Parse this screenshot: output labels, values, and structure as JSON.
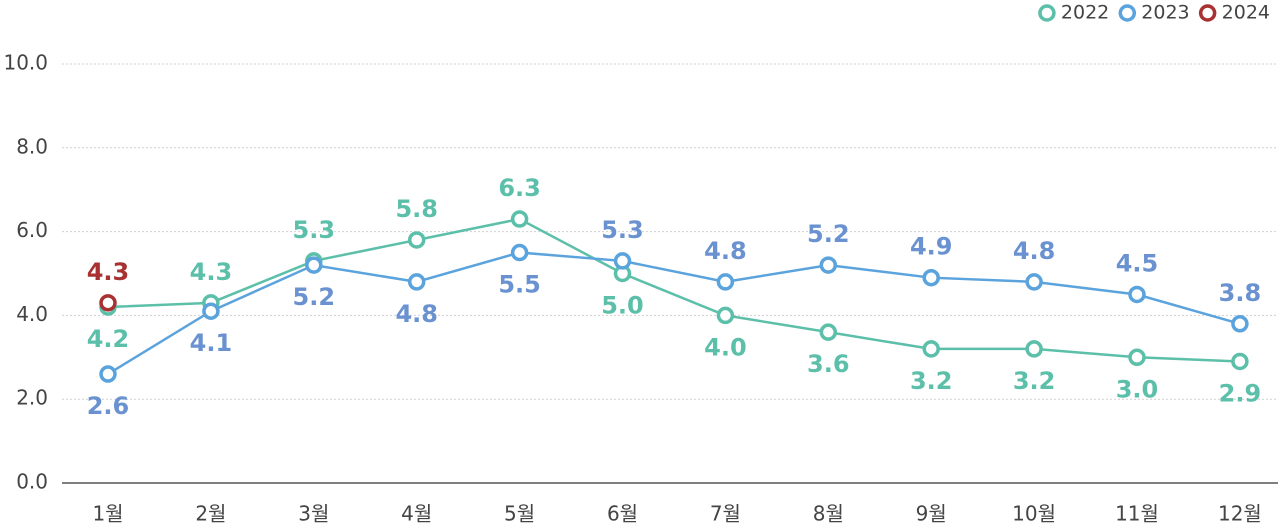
{
  "chart_data": {
    "type": "line",
    "categories": [
      "1월",
      "2월",
      "3월",
      "4월",
      "5월",
      "6월",
      "7월",
      "8월",
      "9월",
      "10월",
      "11월",
      "12월"
    ],
    "series": [
      {
        "name": "2022",
        "color": "#5cbfa9",
        "values": [
          4.2,
          4.3,
          5.3,
          5.8,
          6.3,
          5.0,
          4.0,
          3.6,
          3.2,
          3.2,
          3.0,
          2.9
        ],
        "value_labels": [
          "4.2",
          "4.3",
          "5.3",
          "5.8",
          "6.3",
          "5.0",
          "4.0",
          "3.6",
          "3.2",
          "3.2",
          "3.0",
          "2.9"
        ]
      },
      {
        "name": "2023",
        "color": "#5ba3dd",
        "values": [
          2.6,
          4.1,
          5.2,
          4.8,
          5.5,
          5.3,
          4.8,
          5.2,
          4.9,
          4.8,
          4.5,
          3.8
        ],
        "value_labels": [
          "2.6",
          "4.1",
          "5.2",
          "4.8",
          "5.5",
          "5.3",
          "4.8",
          "5.2",
          "4.9",
          "4.8",
          "4.5",
          "3.8"
        ]
      },
      {
        "name": "2024",
        "color": "#a83232",
        "values": [
          4.3,
          null,
          null,
          null,
          null,
          null,
          null,
          null,
          null,
          null,
          null,
          null
        ],
        "value_labels": [
          "4.3",
          null,
          null,
          null,
          null,
          null,
          null,
          null,
          null,
          null,
          null,
          null
        ]
      }
    ],
    "ylim": [
      0,
      10
    ],
    "yticks": [
      {
        "value": 0,
        "label": "0.0"
      },
      {
        "value": 2,
        "label": "2.0"
      },
      {
        "value": 4,
        "label": "4.0"
      },
      {
        "value": 6,
        "label": "6.0"
      },
      {
        "value": 8,
        "label": "8.0"
      },
      {
        "value": 10,
        "label": "10.0"
      }
    ],
    "grid": true,
    "legend": "top-right"
  }
}
